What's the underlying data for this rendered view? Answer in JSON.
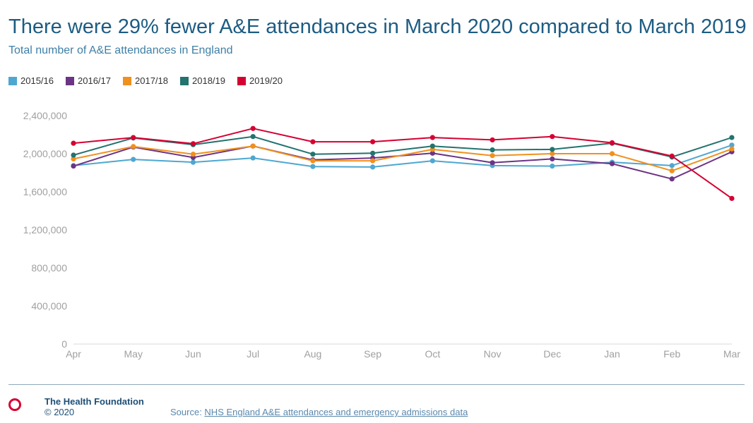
{
  "header": {
    "title": "There were 29% fewer A&E attendances in March 2020 compared to March 2019",
    "subtitle": "Total number of A&E attendances in England"
  },
  "chart_data": {
    "type": "line",
    "title": "There were 29% fewer A&E attendances in March 2020 compared to March 2019",
    "subtitle": "Total number of A&E attendances in England",
    "xlabel": "",
    "ylabel": "",
    "categories": [
      "Apr",
      "May",
      "Jun",
      "Jul",
      "Aug",
      "Sep",
      "Oct",
      "Nov",
      "Dec",
      "Jan",
      "Feb",
      "Mar"
    ],
    "ylim": [
      0,
      2400000
    ],
    "yticks": [
      0,
      400000,
      800000,
      1200000,
      1600000,
      2000000,
      2400000
    ],
    "ytick_labels": [
      "0",
      "400,000",
      "800,000",
      "1,200,000",
      "1,600,000",
      "2,000,000",
      "2,400,000"
    ],
    "grid": false,
    "legend_position": "top-left",
    "series": [
      {
        "name": "2015/16",
        "color": "#4ea7d1",
        "values": [
          1875000,
          1940000,
          1910000,
          1955000,
          1865000,
          1860000,
          1925000,
          1875000,
          1870000,
          1910000,
          1875000,
          2090000
        ]
      },
      {
        "name": "2016/17",
        "color": "#6c3485",
        "values": [
          1870000,
          2070000,
          1960000,
          2080000,
          1935000,
          1955000,
          2005000,
          1905000,
          1945000,
          1895000,
          1735000,
          2020000
        ]
      },
      {
        "name": "2017/18",
        "color": "#f0901e",
        "values": [
          1945000,
          2075000,
          1995000,
          2080000,
          1925000,
          1925000,
          2045000,
          1980000,
          2000000,
          2000000,
          1820000,
          2050000
        ]
      },
      {
        "name": "2018/19",
        "color": "#23736f",
        "values": [
          1985000,
          2165000,
          2095000,
          2180000,
          1995000,
          2005000,
          2080000,
          2040000,
          2045000,
          2110000,
          1965000,
          2170000
        ]
      },
      {
        "name": "2019/20",
        "color": "#d50032",
        "values": [
          2110000,
          2170000,
          2105000,
          2265000,
          2125000,
          2125000,
          2170000,
          2145000,
          2180000,
          2115000,
          1975000,
          1530000
        ]
      }
    ]
  },
  "footer": {
    "org_name": "The Health Foundation",
    "copyright": "© 2020",
    "source_prefix": "Source: ",
    "source_link": "NHS England A&E attendances and emergency admissions data",
    "brand_color": "#d50032"
  }
}
